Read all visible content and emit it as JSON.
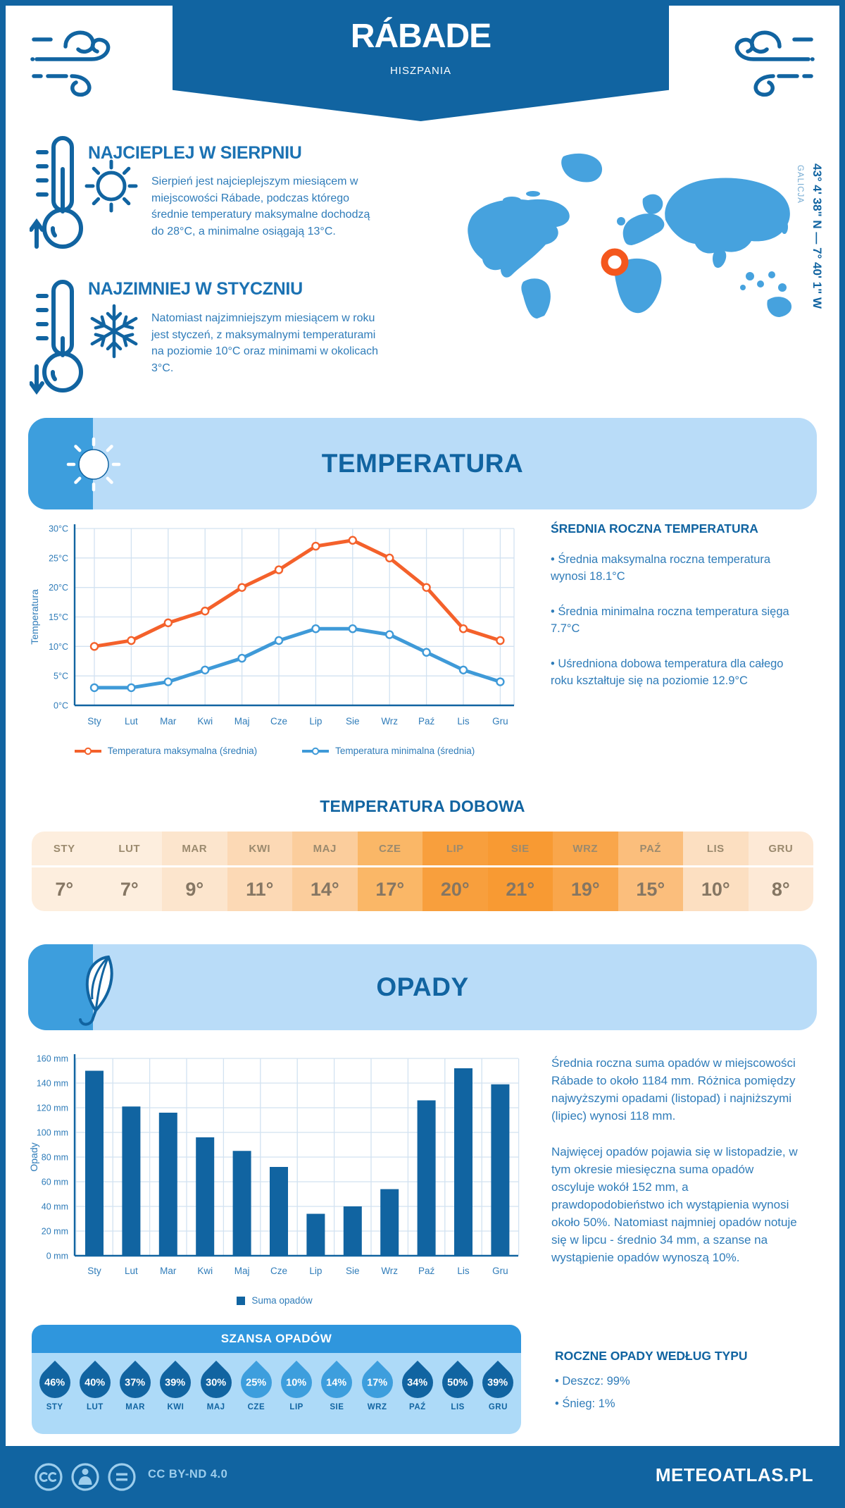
{
  "header": {
    "title": "RÁBADE",
    "subtitle": "HISZPANIA"
  },
  "geo": {
    "coordinates": "43° 4' 38\" N — 7° 40' 1\" W",
    "region": "GALICJA"
  },
  "highlights": {
    "warmest": {
      "title": "NAJCIEPLEJ W SIERPNIU",
      "text": "Sierpień jest najcieplejszym miesiącem w miejscowości Rábade, podczas którego średnie temperatury maksymalne dochodzą do 28°C, a minimalne osiągają 13°C."
    },
    "coldest": {
      "title": "NAJZIMNIEJ W STYCZNIU",
      "text": "Natomiast najzimniejszym miesiącem w roku jest styczeń, z maksymalnymi temperaturami na poziomie 10°C oraz minimami w okolicach 3°C."
    }
  },
  "temperature_section": {
    "banner": "TEMPERATURA",
    "annual_title": "ŚREDNIA ROCZNA TEMPERATURA",
    "annual_bullets": [
      "Średnia maksymalna roczna temperatura wynosi 18.1°C",
      "Średnia minimalna roczna temperatura sięga 7.7°C",
      "Uśredniona dobowa temperatura dla całego roku kształtuje się na poziomie 12.9°C"
    ],
    "daily_title": "TEMPERATURA DOBOWA",
    "daily": {
      "months": [
        "STY",
        "LUT",
        "MAR",
        "KWI",
        "MAJ",
        "CZE",
        "LIP",
        "SIE",
        "WRZ",
        "PAŹ",
        "LIS",
        "GRU"
      ],
      "values": [
        "7°",
        "7°",
        "9°",
        "11°",
        "14°",
        "17°",
        "20°",
        "21°",
        "19°",
        "15°",
        "10°",
        "8°"
      ],
      "cell_colors": [
        "#fdeede",
        "#fdeede",
        "#fce5cd",
        "#fcd9b5",
        "#fbcd9c",
        "#fab767",
        "#f89f3d",
        "#f89a33",
        "#f9a64b",
        "#fbbe7c",
        "#fcdfc1",
        "#fde9d6"
      ]
    }
  },
  "precipitation_section": {
    "banner": "OPADY",
    "paragraphs": [
      "Średnia roczna suma opadów w miejscowości Rábade to około 1184 mm. Różnica pomiędzy najwyższymi opadami (listopad) i najniższymi (lipiec) wynosi 118 mm.",
      "Najwięcej opadów pojawia się w listopadzie, w tym okresie miesięczna suma opadów oscyluje wokół 152 mm, a prawdopodobieństwo ich wystąpienia wynosi około 50%. Natomiast najmniej opadów notuje się w lipcu - średnio 34 mm, a szanse na wystąpienie opadów wynoszą 10%."
    ],
    "chance_title": "SZANSA OPADÓW",
    "chance": {
      "months": [
        "STY",
        "LUT",
        "MAR",
        "KWI",
        "MAJ",
        "CZE",
        "LIP",
        "SIE",
        "WRZ",
        "PAŹ",
        "LIS",
        "GRU"
      ],
      "values": [
        46,
        40,
        37,
        39,
        30,
        25,
        10,
        14,
        17,
        34,
        50,
        39
      ],
      "dark_threshold": 30
    },
    "type_title": "ROCZNE OPADY WEDŁUG TYPU",
    "type_bullets": [
      "Deszcz: 99%",
      "Śnieg: 1%"
    ]
  },
  "footer": {
    "license": "CC BY-ND 4.0",
    "site": "METEOATLAS.PL"
  },
  "colors": {
    "primary_dark": "#1164a1",
    "heading_blue": "#1b72b3",
    "body_blue": "#2f7cb9",
    "banner_light": "#b9dcf8",
    "banner_cap": "#3d9edd",
    "map_blue": "#46a2de",
    "marker_orange": "#f4571d",
    "line_max": "#f4612b",
    "line_min": "#3f9ad8",
    "bar_blue": "#1164a1",
    "grid": "#d2e2f1",
    "chance_header": "#2f96dd",
    "chance_body": "#addaf8",
    "drop_dark": "#1164a1",
    "drop_light": "#3d9edd"
  },
  "chart_data": [
    {
      "type": "line",
      "x": [
        "Sty",
        "Lut",
        "Mar",
        "Kwi",
        "Maj",
        "Cze",
        "Lip",
        "Sie",
        "Wrz",
        "Paź",
        "Lis",
        "Gru"
      ],
      "ylabel": "Temperatura",
      "ylim": [
        0,
        30
      ],
      "ytick_step": 5,
      "ytick_suffix": "°C",
      "grid": true,
      "legend_position": "bottom",
      "series": [
        {
          "name": "Temperatura maksymalna (średnia)",
          "color": "#f4612b",
          "values": [
            10,
            11,
            14,
            16,
            20,
            23,
            27,
            28,
            25,
            20,
            13,
            11
          ]
        },
        {
          "name": "Temperatura minimalna (średnia)",
          "color": "#3f9ad8",
          "values": [
            3,
            3,
            4,
            6,
            8,
            11,
            13,
            13,
            12,
            9,
            6,
            4
          ]
        }
      ]
    },
    {
      "type": "bar",
      "x": [
        "Sty",
        "Lut",
        "Mar",
        "Kwi",
        "Maj",
        "Cze",
        "Lip",
        "Sie",
        "Wrz",
        "Paź",
        "Lis",
        "Gru"
      ],
      "ylabel": "Opady",
      "ylim": [
        0,
        160
      ],
      "ytick_step": 20,
      "ytick_suffix": " mm",
      "grid": true,
      "legend_position": "bottom",
      "series": [
        {
          "name": "Suma opadów",
          "color": "#1164a1",
          "values": [
            150,
            121,
            116,
            96,
            85,
            72,
            34,
            40,
            54,
            126,
            152,
            139
          ]
        }
      ]
    }
  ]
}
